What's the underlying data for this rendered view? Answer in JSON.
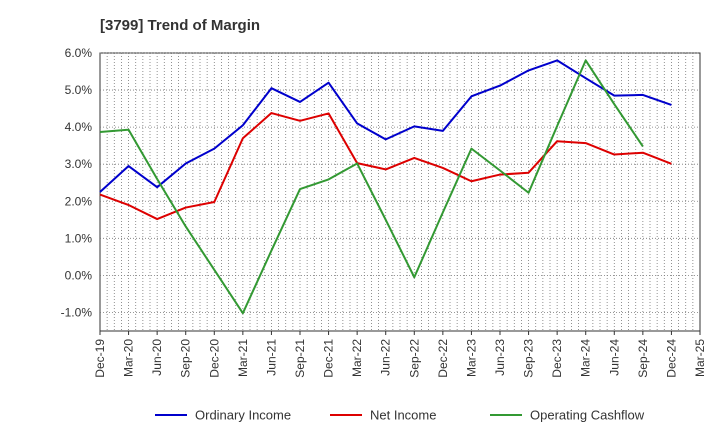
{
  "chart_data": {
    "type": "line",
    "title": "[3799]  Trend of Margin",
    "xlabel": "",
    "ylabel": "",
    "ylim": [
      -1.5,
      6.0
    ],
    "yticks": [
      -1.0,
      0.0,
      1.0,
      2.0,
      3.0,
      4.0,
      5.0,
      6.0
    ],
    "ytick_labels": [
      "-1.0%",
      "0.0%",
      "1.0%",
      "2.0%",
      "3.0%",
      "4.0%",
      "5.0%",
      "6.0%"
    ],
    "grid": true,
    "legend_position": "bottom",
    "categories": [
      "Dec-19",
      "Mar-20",
      "Jun-20",
      "Sep-20",
      "Dec-20",
      "Mar-21",
      "Jun-21",
      "Sep-21",
      "Dec-21",
      "Mar-22",
      "Jun-22",
      "Sep-22",
      "Dec-22",
      "Mar-23",
      "Jun-23",
      "Sep-23",
      "Dec-23",
      "Mar-24",
      "Jun-24",
      "Sep-24",
      "Dec-24",
      "Mar-25"
    ],
    "series": [
      {
        "name": "Ordinary Income",
        "color": "#0000cc",
        "values": [
          2.25,
          2.95,
          2.38,
          3.02,
          3.42,
          4.05,
          5.05,
          4.68,
          5.2,
          4.1,
          3.67,
          4.02,
          3.9,
          4.83,
          5.12,
          5.53,
          5.8,
          5.32,
          4.85,
          4.87,
          4.6,
          null
        ]
      },
      {
        "name": "Net Income",
        "color": "#dd0000",
        "values": [
          2.18,
          1.9,
          1.52,
          1.83,
          1.98,
          3.7,
          4.38,
          4.17,
          4.37,
          3.03,
          2.86,
          3.17,
          2.9,
          2.54,
          2.72,
          2.77,
          3.62,
          3.57,
          3.26,
          3.31,
          3.01,
          null
        ]
      },
      {
        "name": "Operating Cashflow",
        "color": "#339933",
        "values": [
          3.87,
          3.93,
          2.6,
          1.32,
          0.15,
          -1.02,
          0.67,
          2.33,
          2.59,
          3.02,
          1.5,
          -0.05,
          1.7,
          3.42,
          2.83,
          2.23,
          4.03,
          5.8,
          4.62,
          3.48,
          null,
          null
        ]
      }
    ]
  }
}
